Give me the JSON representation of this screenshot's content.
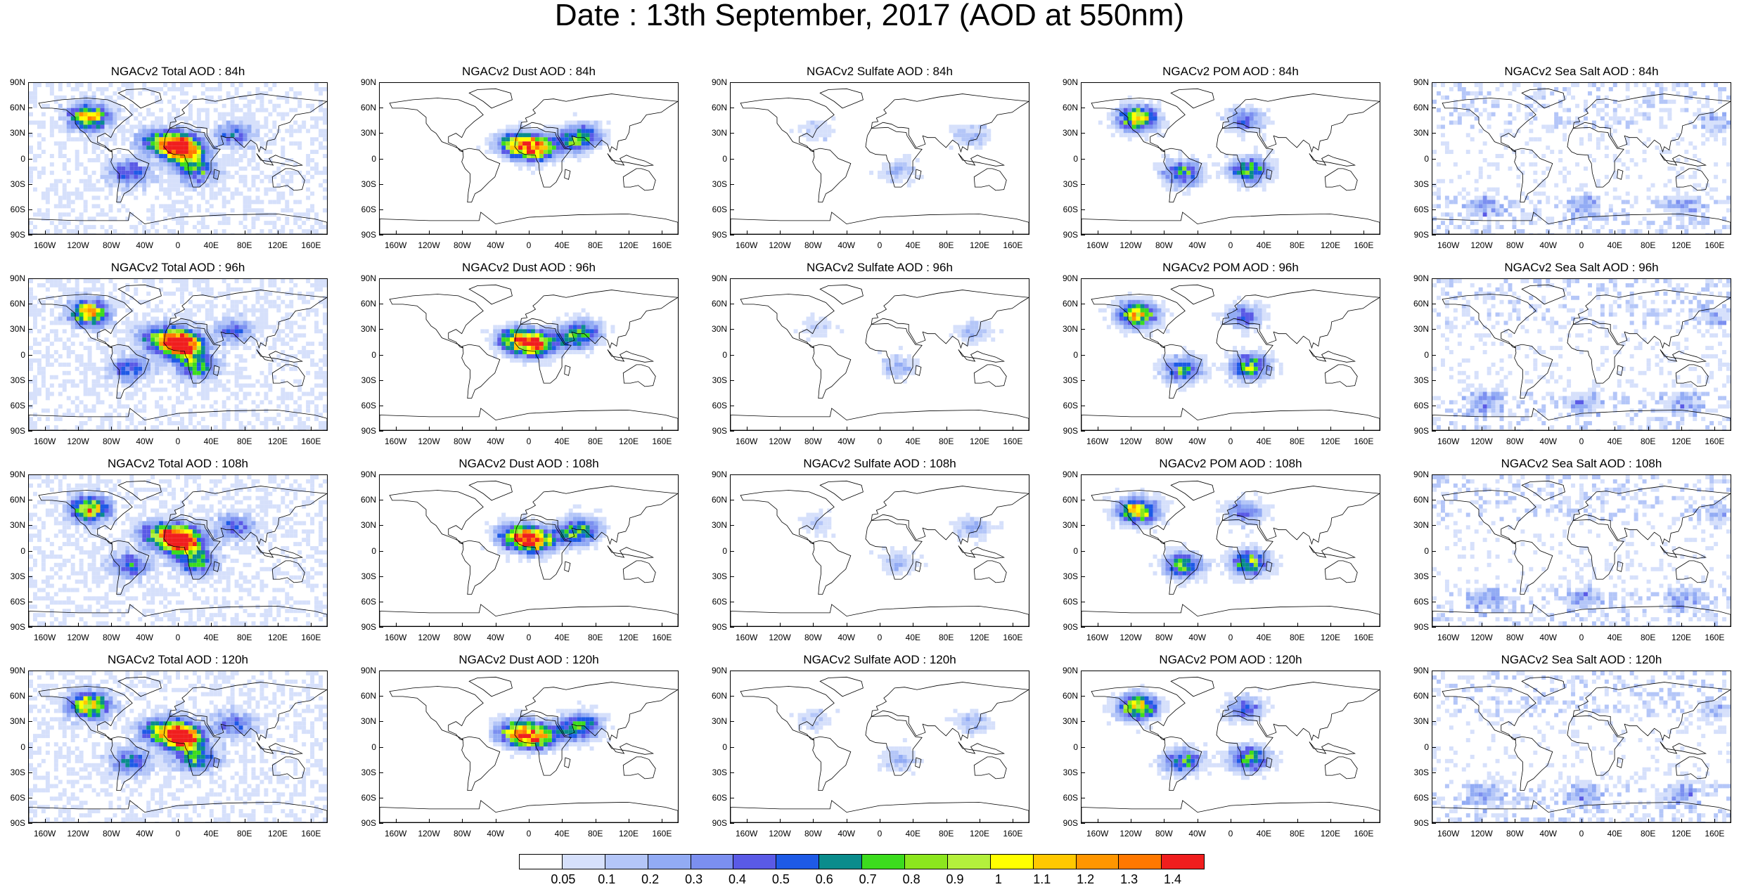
{
  "title": "Date : 13th September, 2017 (AOD at 550nm)",
  "y_tick_labels": [
    "90N",
    "60N",
    "30N",
    "0",
    "30S",
    "60S",
    "90S"
  ],
  "x_tick_labels": [
    "160W",
    "120W",
    "80W",
    "40W",
    "0",
    "40E",
    "80E",
    "120E",
    "160E"
  ],
  "columns": [
    {
      "species": "Total",
      "density": 0.72
    },
    {
      "species": "Dust",
      "density": 0.3
    },
    {
      "species": "Sulfate",
      "density": 0.12
    },
    {
      "species": "POM",
      "density": 0.35
    },
    {
      "species": "Sea Salt",
      "density": 0.42
    }
  ],
  "panels": [
    [
      "NGACv2 Total AOD : 84h",
      "NGACv2 Dust AOD : 84h",
      "NGACv2 Sulfate AOD : 84h",
      "NGACv2 POM AOD : 84h",
      "NGACv2 Sea Salt AOD : 84h"
    ],
    [
      "NGACv2 Total AOD : 96h",
      "NGACv2 Dust AOD : 96h",
      "NGACv2 Sulfate AOD : 96h",
      "NGACv2 POM AOD : 96h",
      "NGACv2 Sea Salt AOD : 96h"
    ],
    [
      "NGACv2 Total AOD : 108h",
      "NGACv2 Dust AOD : 108h",
      "NGACv2 Sulfate AOD : 108h",
      "NGACv2 POM AOD : 108h",
      "NGACv2 Sea Salt AOD : 108h"
    ],
    [
      "NGACv2 Total AOD : 120h",
      "NGACv2 Dust AOD : 120h",
      "NGACv2 Sulfate AOD : 120h",
      "NGACv2 POM AOD : 120h",
      "NGACv2 Sea Salt  AOD : 120h"
    ]
  ],
  "colorbar": {
    "labels": [
      "0.05",
      "0.1",
      "0.2",
      "0.3",
      "0.4",
      "0.5",
      "0.6",
      "0.7",
      "0.8",
      "0.9",
      "1",
      "1.1",
      "1.2",
      "1.3",
      "1.4"
    ],
    "colors": [
      "#ffffff",
      "#d6e0fb",
      "#b4c6f8",
      "#92abf4",
      "#7b8ff0",
      "#5a5ae6",
      "#1e5ae6",
      "#0a8c8c",
      "#3cdc1e",
      "#8ce61e",
      "#b4f03c",
      "#ffff00",
      "#ffc800",
      "#ff9600",
      "#ff7800",
      "#f01e1e"
    ]
  }
}
